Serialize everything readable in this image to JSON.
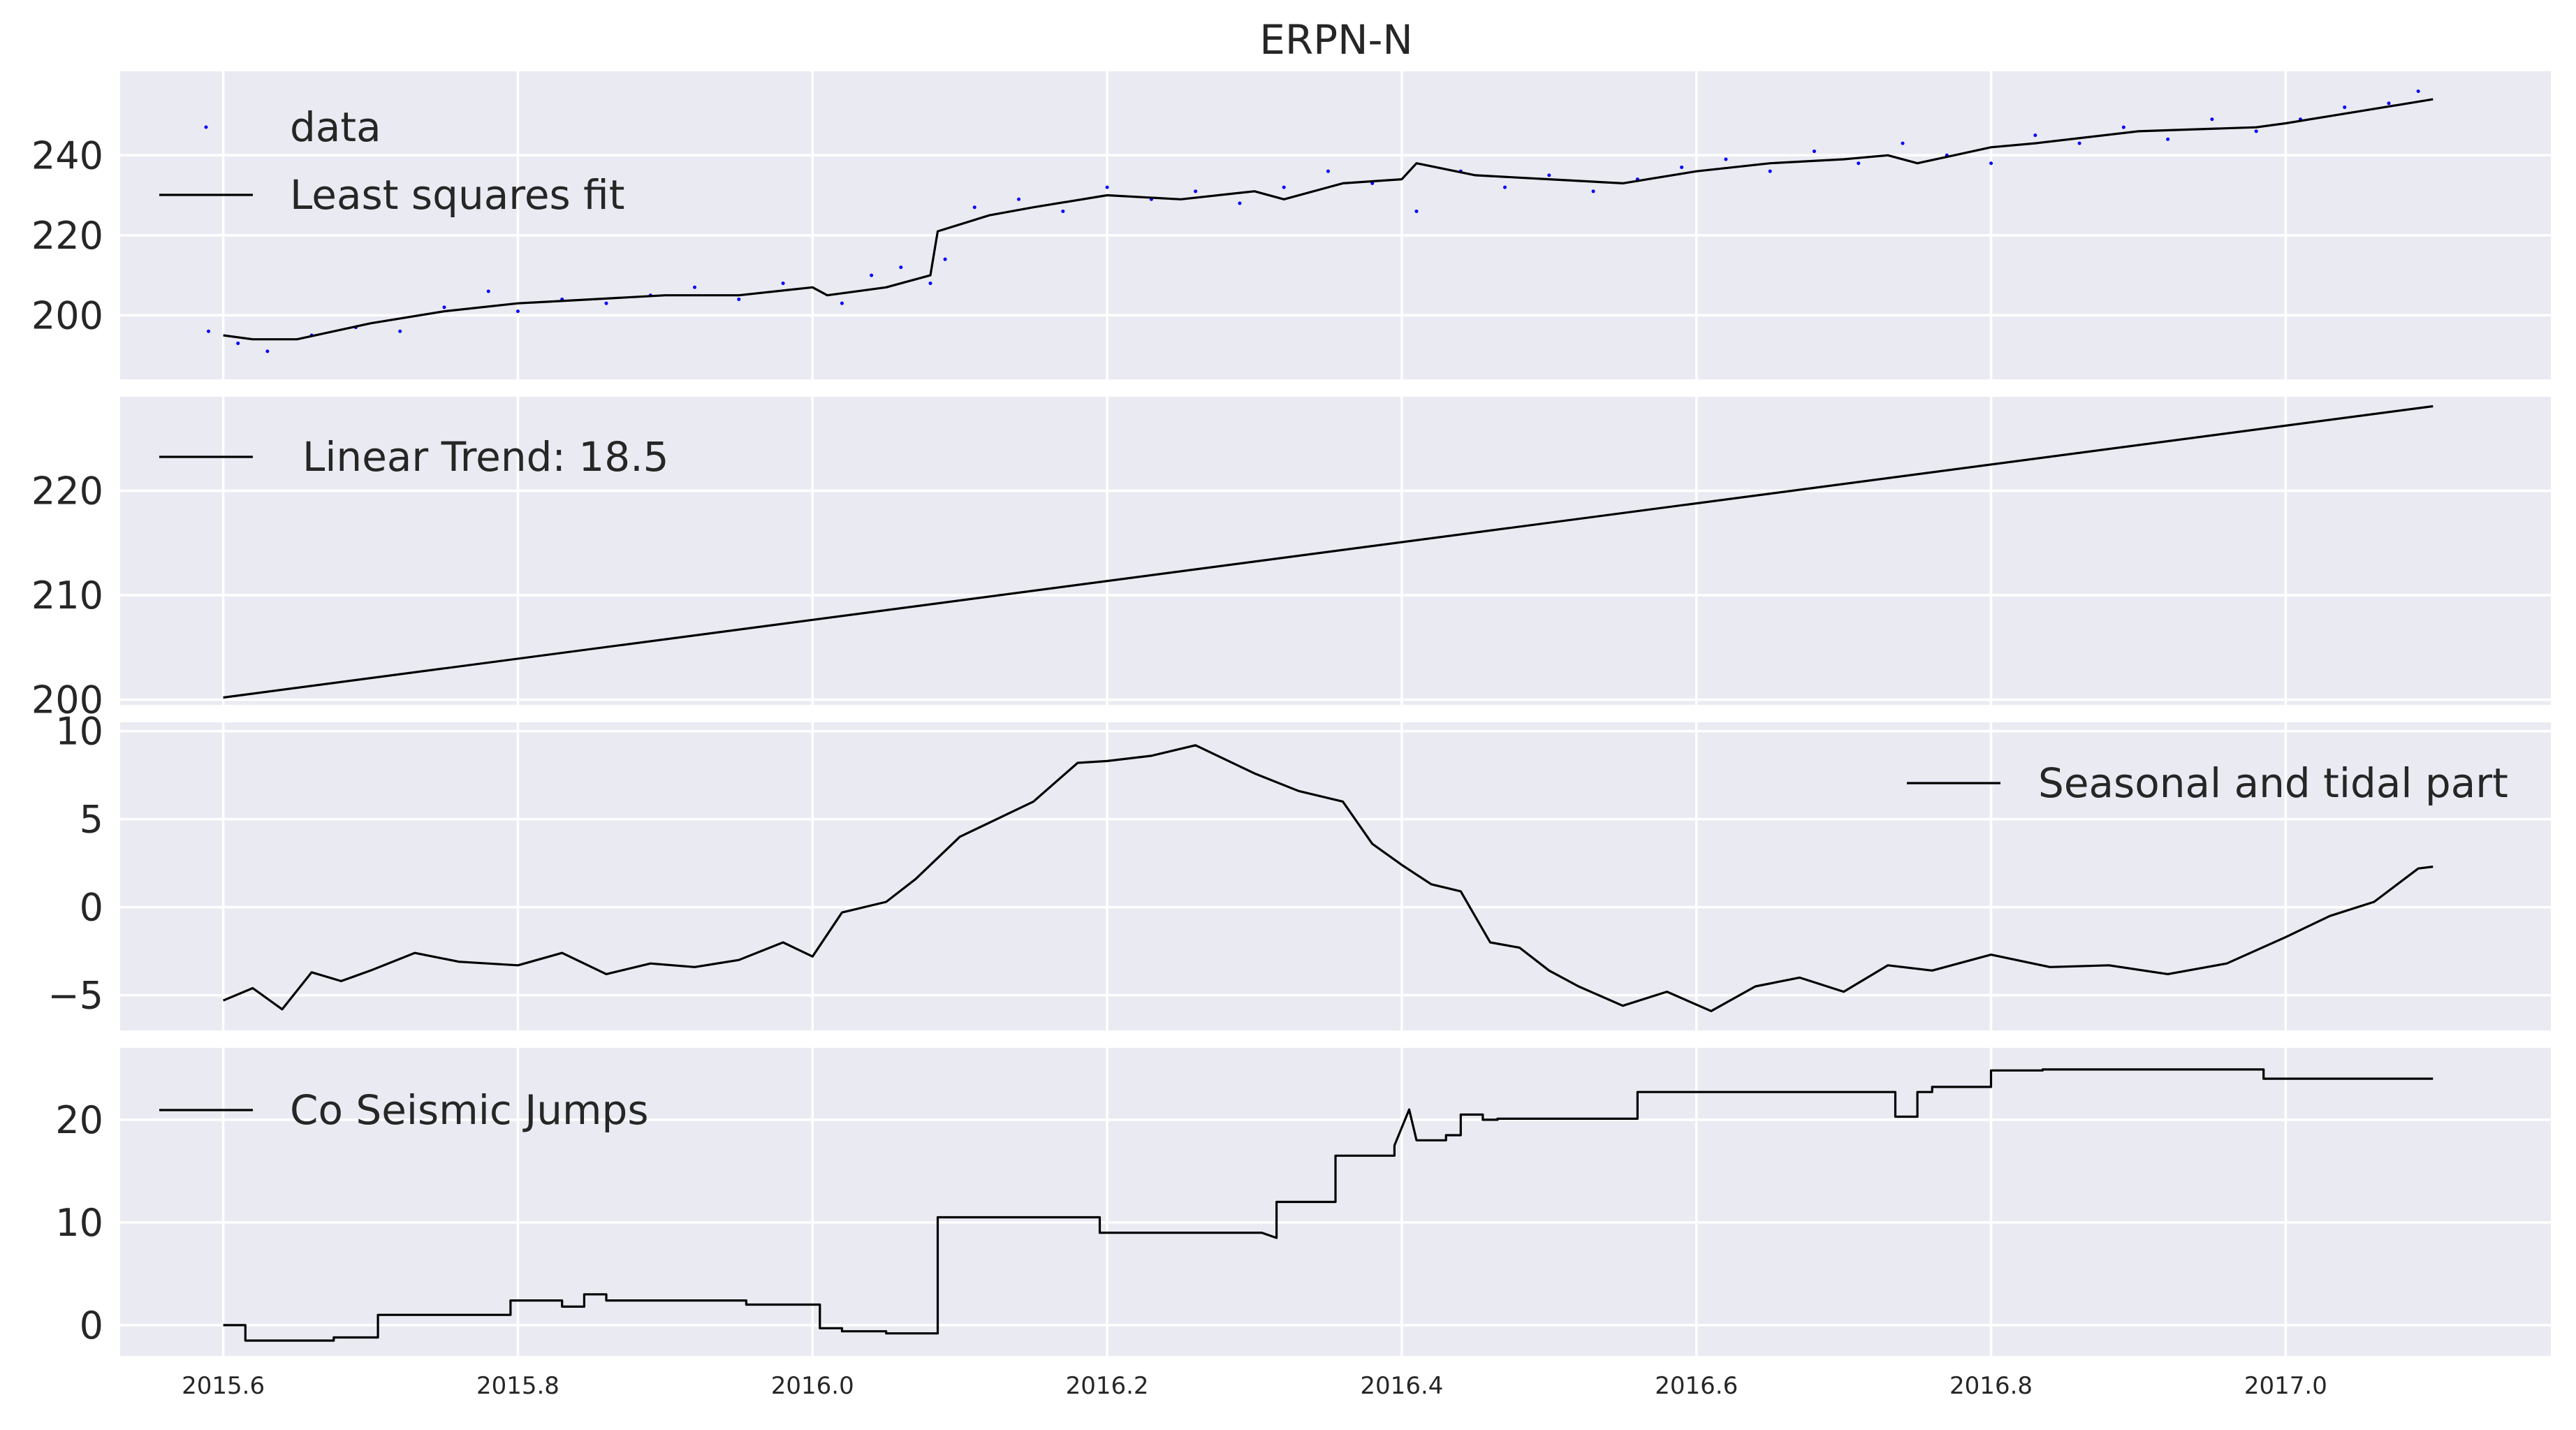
{
  "chart_data": {
    "type": "line",
    "title": "ERPN-N",
    "x_range": [
      2015.53,
      2017.18
    ],
    "x_ticks": [
      "2015.6",
      "2015.8",
      "2016.0",
      "2016.2",
      "2016.4",
      "2016.6",
      "2016.8",
      "2017.0"
    ],
    "x_tick_values": [
      2015.6,
      2015.8,
      2016.0,
      2016.2,
      2016.4,
      2016.6,
      2016.8,
      2017.0
    ],
    "colors": {
      "data": "#0000ff",
      "line": "#000000",
      "panel": "#eaeaf2",
      "grid": "#ffffff"
    },
    "panels": [
      {
        "name": "fit",
        "ylim": [
          184,
          261
        ],
        "y_ticks": [
          200,
          220,
          240
        ],
        "legend_position": "upper-left",
        "legend": [
          "data",
          "Least squares fit"
        ],
        "fit": {
          "x": [
            2015.6,
            2015.62,
            2015.65,
            2015.7,
            2015.75,
            2015.8,
            2015.85,
            2015.9,
            2015.95,
            2016.0,
            2016.01,
            2016.05,
            2016.08,
            2016.085,
            2016.12,
            2016.15,
            2016.2,
            2016.25,
            2016.3,
            2016.32,
            2016.36,
            2016.4,
            2016.41,
            2016.45,
            2016.5,
            2016.55,
            2016.6,
            2016.65,
            2016.7,
            2016.73,
            2016.75,
            2016.8,
            2016.83,
            2016.9,
            2016.98,
            2017.0,
            2017.05,
            2017.1
          ],
          "y": [
            195,
            194,
            194,
            198,
            201,
            203,
            204,
            205,
            205,
            207,
            205,
            207,
            210,
            221,
            225,
            227,
            230,
            229,
            231,
            229,
            233,
            234,
            238,
            235,
            234,
            233,
            236,
            238,
            239,
            240,
            238,
            242,
            243,
            246,
            247,
            248,
            251,
            254
          ]
        },
        "data": {
          "x": [
            2015.59,
            2015.61,
            2015.63,
            2015.66,
            2015.69,
            2015.72,
            2015.75,
            2015.78,
            2015.8,
            2015.83,
            2015.86,
            2015.89,
            2015.92,
            2015.95,
            2015.98,
            2016.02,
            2016.04,
            2016.06,
            2016.08,
            2016.09,
            2016.11,
            2016.14,
            2016.17,
            2016.2,
            2016.23,
            2016.26,
            2016.29,
            2016.32,
            2016.35,
            2016.38,
            2016.41,
            2016.44,
            2016.47,
            2016.5,
            2016.53,
            2016.56,
            2016.59,
            2016.62,
            2016.65,
            2016.68,
            2016.71,
            2016.74,
            2016.77,
            2016.8,
            2016.83,
            2016.86,
            2016.89,
            2016.92,
            2016.95,
            2016.98,
            2017.01,
            2017.04,
            2017.07,
            2017.09
          ],
          "y": [
            196,
            193,
            191,
            195,
            197,
            196,
            202,
            206,
            201,
            204,
            203,
            205,
            207,
            204,
            208,
            203,
            210,
            212,
            208,
            214,
            227,
            229,
            226,
            232,
            229,
            231,
            228,
            232,
            236,
            233,
            226,
            236,
            232,
            235,
            231,
            234,
            237,
            239,
            236,
            241,
            238,
            243,
            240,
            238,
            245,
            243,
            247,
            244,
            249,
            246,
            249,
            252,
            253,
            256
          ]
        }
      },
      {
        "name": "trend",
        "ylim": [
          199.5,
          229
        ],
        "y_ticks": [
          200,
          210,
          220
        ],
        "legend_position": "upper-left",
        "legend": [
          "Linear Trend: 18.5"
        ],
        "x": [
          2015.6,
          2017.1
        ],
        "y": [
          200.2,
          228.1
        ]
      },
      {
        "name": "seasonal",
        "ylim": [
          -7,
          10.5
        ],
        "y_ticks": [
          -5,
          0,
          5,
          10
        ],
        "y_tick_labels": [
          "−5",
          "0",
          "5",
          "10"
        ],
        "legend_position": "upper-right",
        "legend": [
          "Seasonal and tidal part"
        ],
        "x": [
          2015.6,
          2015.62,
          2015.64,
          2015.66,
          2015.68,
          2015.7,
          2015.73,
          2015.76,
          2015.8,
          2015.83,
          2015.86,
          2015.89,
          2015.92,
          2015.95,
          2015.98,
          2016.0,
          2016.02,
          2016.05,
          2016.07,
          2016.1,
          2016.13,
          2016.15,
          2016.18,
          2016.2,
          2016.23,
          2016.26,
          2016.3,
          2016.33,
          2016.36,
          2016.38,
          2016.4,
          2016.42,
          2016.44,
          2016.46,
          2016.48,
          2016.5,
          2016.52,
          2016.55,
          2016.58,
          2016.61,
          2016.64,
          2016.67,
          2016.7,
          2016.73,
          2016.76,
          2016.8,
          2016.84,
          2016.88,
          2016.92,
          2016.96,
          2017.0,
          2017.03,
          2017.06,
          2017.09,
          2017.1
        ],
        "y": [
          -5.3,
          -4.6,
          -5.8,
          -3.7,
          -4.2,
          -3.6,
          -2.6,
          -3.1,
          -3.3,
          -2.6,
          -3.8,
          -3.2,
          -3.4,
          -3.0,
          -2.0,
          -2.8,
          -0.3,
          0.3,
          1.6,
          4.0,
          5.2,
          6.0,
          8.2,
          8.3,
          8.6,
          9.2,
          7.6,
          6.6,
          6.0,
          3.6,
          2.4,
          1.3,
          0.9,
          -2.0,
          -2.3,
          -3.6,
          -4.5,
          -5.6,
          -4.8,
          -5.9,
          -4.5,
          -4.0,
          -4.8,
          -3.3,
          -3.6,
          -2.7,
          -3.4,
          -3.3,
          -3.8,
          -3.2,
          -1.7,
          -0.5,
          0.3,
          2.2,
          2.3
        ]
      },
      {
        "name": "jumps",
        "ylim": [
          -3,
          27
        ],
        "y_ticks": [
          0,
          10,
          20
        ],
        "legend_position": "upper-left",
        "legend": [
          "Co Seismic Jumps"
        ],
        "x": [
          2015.6,
          2015.615,
          2015.615,
          2015.675,
          2015.675,
          2015.705,
          2015.705,
          2015.795,
          2015.795,
          2015.83,
          2015.83,
          2015.845,
          2015.845,
          2015.86,
          2015.86,
          2015.955,
          2015.955,
          2016.005,
          2016.005,
          2016.02,
          2016.02,
          2016.05,
          2016.05,
          2016.085,
          2016.085,
          2016.195,
          2016.195,
          2016.305,
          2016.315,
          2016.315,
          2016.355,
          2016.355,
          2016.395,
          2016.395,
          2016.405,
          2016.41,
          2016.415,
          2016.43,
          2016.43,
          2016.44,
          2016.44,
          2016.455,
          2016.455,
          2016.465,
          2016.465,
          2016.475,
          2016.475,
          2016.56,
          2016.56,
          2016.735,
          2016.735,
          2016.75,
          2016.75,
          2016.76,
          2016.76,
          2016.8,
          2016.8,
          2016.835,
          2016.835,
          2016.985,
          2016.985,
          2017.1
        ],
        "y": [
          0,
          0,
          -1.5,
          -1.5,
          -1.2,
          -1.2,
          1,
          1,
          2.4,
          2.4,
          1.8,
          1.8,
          3,
          3,
          2.4,
          2.4,
          2,
          2,
          -0.3,
          -0.3,
          -0.6,
          -0.6,
          -0.8,
          -0.8,
          10.5,
          10.5,
          9,
          9,
          8.5,
          12,
          12,
          16.5,
          16.5,
          17.5,
          21,
          18,
          18,
          18,
          18.5,
          18.5,
          20.5,
          20.5,
          20,
          20,
          20.1,
          20.1,
          20.1,
          20.1,
          22.7,
          22.7,
          20.3,
          20.3,
          22.7,
          22.7,
          23.2,
          23.2,
          24.8,
          24.8,
          24.9,
          24.9,
          24,
          24
        ]
      }
    ]
  }
}
